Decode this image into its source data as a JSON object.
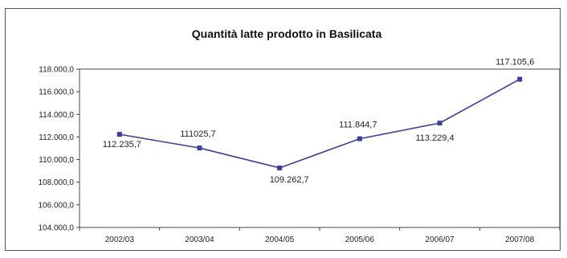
{
  "chart_data": {
    "type": "line",
    "title": "Quantità latte prodotto in Basilicata",
    "xlabel": "",
    "ylabel": "",
    "categories": [
      "2002/03",
      "2003/04",
      "2004/05",
      "2005/06",
      "2006/07",
      "2007/08"
    ],
    "series": [
      {
        "values": [
          112235.7,
          111025.7,
          109262.7,
          111844.7,
          113229.4,
          117105.6
        ],
        "labels": [
          "112.235,7",
          "111025,7",
          "109.262,7",
          "111.844,7",
          "113.229,4",
          "117.105,6"
        ],
        "color": "#3a3f9a"
      }
    ],
    "ylim": [
      104000,
      118000
    ],
    "yticks": [
      104000,
      106000,
      108000,
      110000,
      112000,
      114000,
      116000,
      118000
    ],
    "ytick_labels": [
      "104.000,0",
      "106.000,0",
      "108.000,0",
      "110.000,0",
      "112.000,0",
      "114.000,0",
      "116.000,0",
      "118.000,0"
    ],
    "grid": false,
    "legend": "none"
  }
}
